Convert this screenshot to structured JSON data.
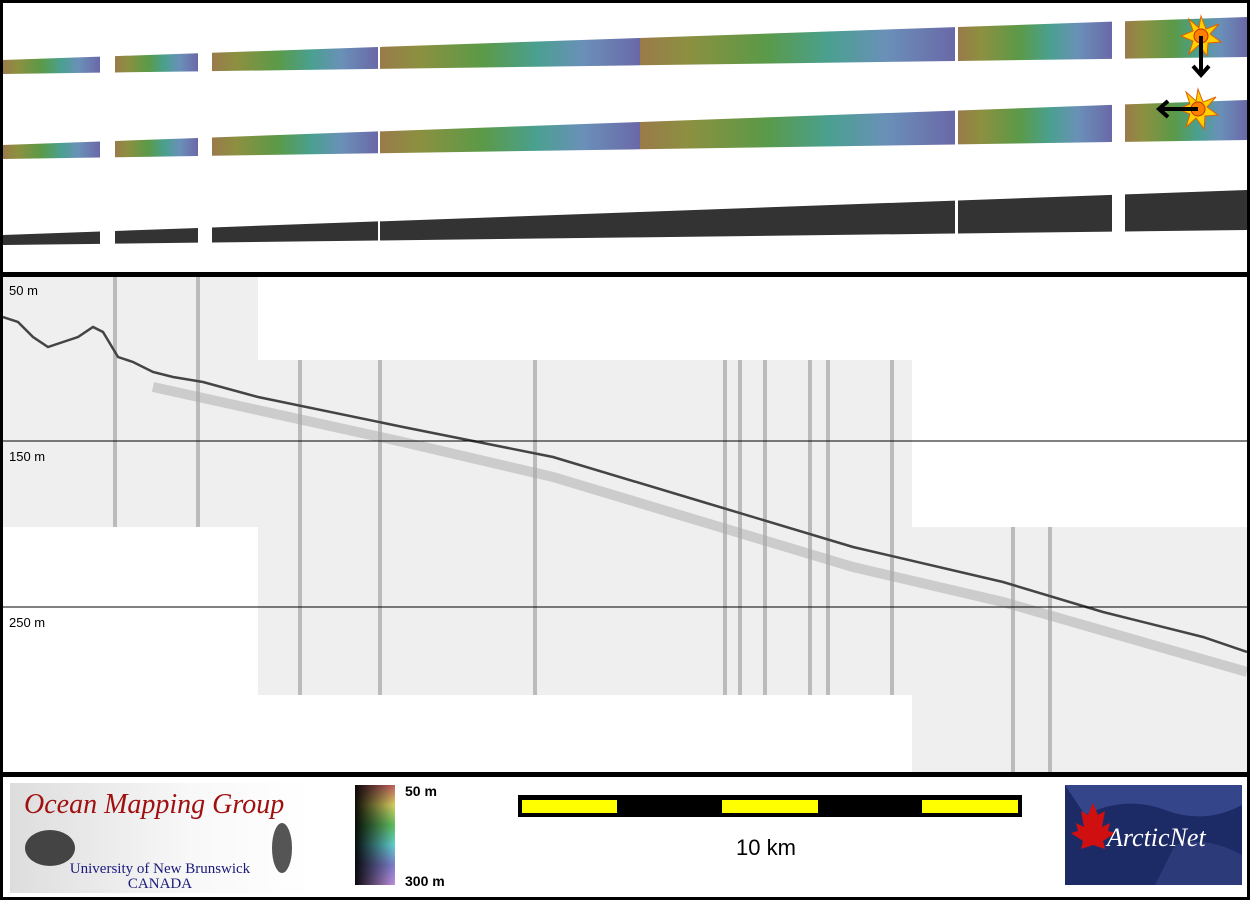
{
  "depth_labels": [
    "50 m",
    "150 m",
    "250 m"
  ],
  "logo_omg": {
    "title": "Ocean Mapping Group",
    "line1": "University of New Brunswick",
    "line2": "CANADA"
  },
  "colorbar": {
    "top_label": "50 m",
    "bottom_label": "300 m"
  },
  "scalebar": {
    "label": "10 km",
    "colors": {
      "bar": "#000000",
      "fill": "#ffff00"
    }
  },
  "logo_arcticnet": {
    "text": "ArcticNet",
    "colors": {
      "bg": "#1c2a66",
      "leaf": "#d01010"
    }
  },
  "icons": [
    "sun-marker-icon",
    "arrow-down-icon",
    "arrow-left-icon"
  ]
}
